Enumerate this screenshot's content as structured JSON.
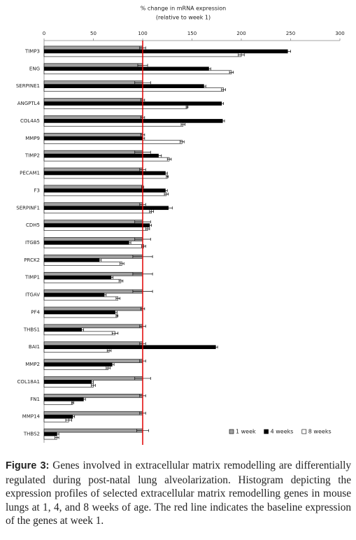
{
  "chart_data": {
    "type": "hbar-grouped",
    "title": "% change in mRNA expression",
    "subtitle": "(relative to week 1)",
    "categories": [
      "TIMP3",
      "ENG",
      "SERPINE1",
      "ANGPTL4",
      "COL4A5",
      "MMP9",
      "TIMP2",
      "PECAM1",
      "F3",
      "SERPINF1",
      "CDH5",
      "ITGB5",
      "PRCK2",
      "TIMP1",
      "ITGAV",
      "PF4",
      "THBS1",
      "BAI1",
      "MMP2",
      "COL18A1",
      "FN1",
      "MMP14",
      "THBS2"
    ],
    "series": [
      {
        "name": "1 week",
        "color": "#a0a0a0",
        "values": [
          100,
          100,
          100,
          100,
          100,
          100,
          100,
          100,
          100,
          100,
          100,
          100,
          100,
          100,
          100,
          100,
          100,
          100,
          100,
          100,
          100,
          100,
          100
        ],
        "errors": [
          3,
          5,
          8,
          2,
          2,
          2,
          8,
          3,
          1,
          3,
          8,
          8,
          10,
          10,
          10,
          2,
          3,
          3,
          3,
          8,
          3,
          3,
          6
        ]
      },
      {
        "name": "4 weeks",
        "color": "#000000",
        "values": [
          247,
          167,
          162,
          180,
          181,
          100,
          116,
          123,
          123,
          126,
          107,
          86,
          56,
          68,
          61,
          72,
          38,
          174,
          69,
          48,
          40,
          29,
          13
        ],
        "errors": [
          3,
          2,
          2,
          2,
          2,
          2,
          3,
          2,
          2,
          4,
          2,
          2,
          2,
          2,
          2,
          2,
          2,
          2,
          2,
          2,
          2,
          2,
          2
        ]
      },
      {
        "name": "8 weeks",
        "color": "#ffffff",
        "values": [
          200,
          190,
          182,
          145,
          141,
          140,
          127,
          125,
          124,
          109,
          105,
          101,
          79,
          78,
          75,
          74,
          72,
          66,
          65,
          50,
          29,
          25,
          13
        ],
        "errors": [
          3,
          2,
          2,
          1,
          2,
          2,
          2,
          1,
          2,
          2,
          2,
          2,
          2,
          2,
          2,
          1,
          3,
          2,
          2,
          2,
          1,
          3,
          2
        ]
      }
    ],
    "xlim": [
      0,
      300
    ],
    "xticks": [
      0,
      50,
      100,
      150,
      200,
      250,
      300
    ],
    "reference_line": 100,
    "reference_color": "#e00000",
    "legend": "lower right"
  },
  "caption": {
    "label": "Figure 3:",
    "text": "Genes involved in extracellular matrix remodelling are differentially regulated during post-natal lung alveolarization. Histogram depicting the expression profiles of selected extracellular matrix remodelling genes in mouse lungs at 1, 4, and 8 weeks of age. The red line indicates the baseline expression of the genes at week 1."
  }
}
